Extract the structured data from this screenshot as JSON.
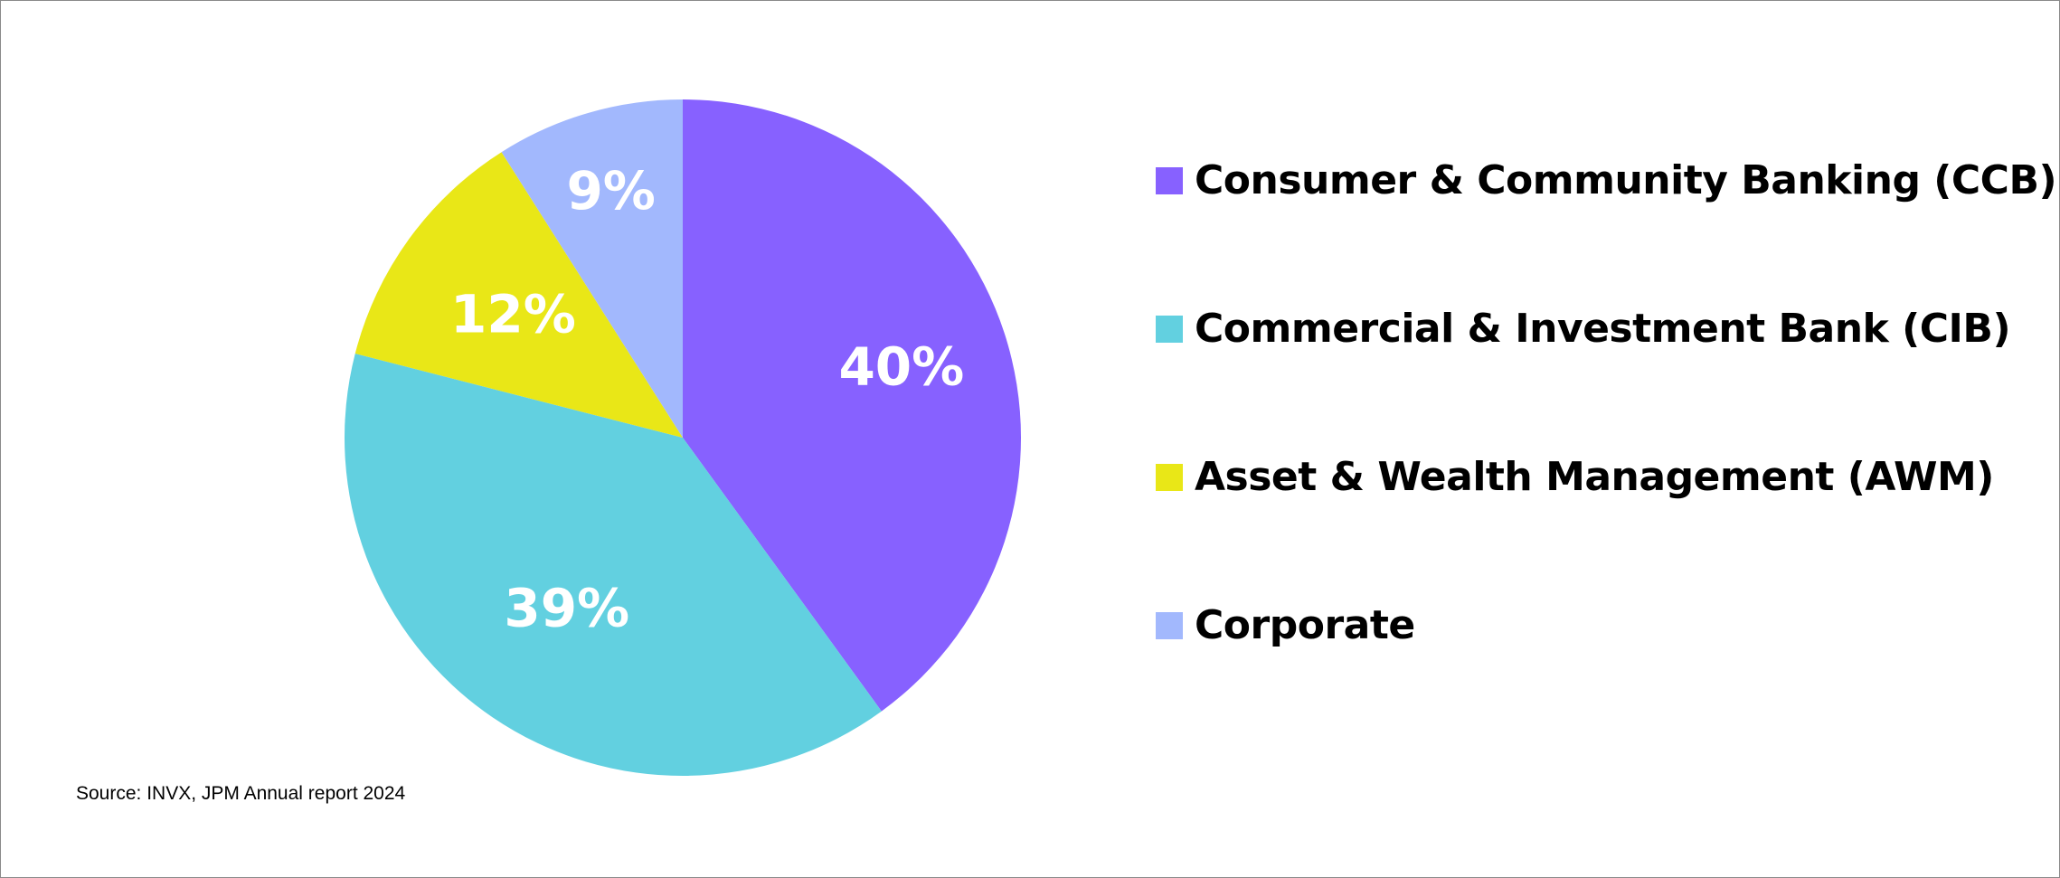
{
  "chart_data": {
    "type": "pie",
    "categories": [
      "Consumer & Community Banking (CCB)",
      "Commercial & Investment Bank (CIB)",
      "Asset & Wealth Management (AWM)",
      "Corporate"
    ],
    "values": [
      40,
      39,
      12,
      9
    ],
    "value_labels": [
      "40%",
      "39%",
      "12%",
      "9%"
    ],
    "colors": [
      "#8761FF",
      "#62D0E0",
      "#E9E717",
      "#A2B8FD"
    ],
    "legend_position": "right",
    "start_angle": "top (12 o'clock), clockwise"
  },
  "source_note": "Source: INVX, JPM Annual report 2024"
}
